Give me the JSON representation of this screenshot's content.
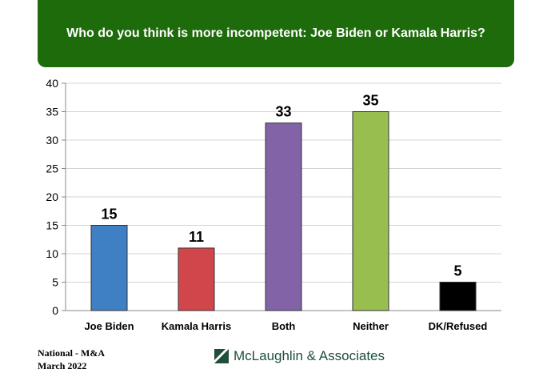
{
  "chart_data": {
    "type": "bar",
    "title": "Who do you think is more incompetent: Joe Biden or Kamala Harris?",
    "categories": [
      "Joe Biden",
      "Kamala Harris",
      "Both",
      "Neither",
      "DK/Refused"
    ],
    "values": [
      15,
      11,
      33,
      35,
      5
    ],
    "colors": [
      "#3f7fc4",
      "#d0464a",
      "#8263a8",
      "#97be4f",
      "#000000"
    ],
    "ylim": [
      0,
      40
    ],
    "yticks": [
      0,
      5,
      10,
      15,
      20,
      25,
      30,
      35,
      40
    ],
    "grid": true,
    "legend": "none"
  },
  "footer": {
    "source_line1": "National - M&A",
    "source_line2": "March 2022",
    "logo_text": "McLaughlin & Associates",
    "logo_icon": "mclaughlin-logo-icon"
  }
}
